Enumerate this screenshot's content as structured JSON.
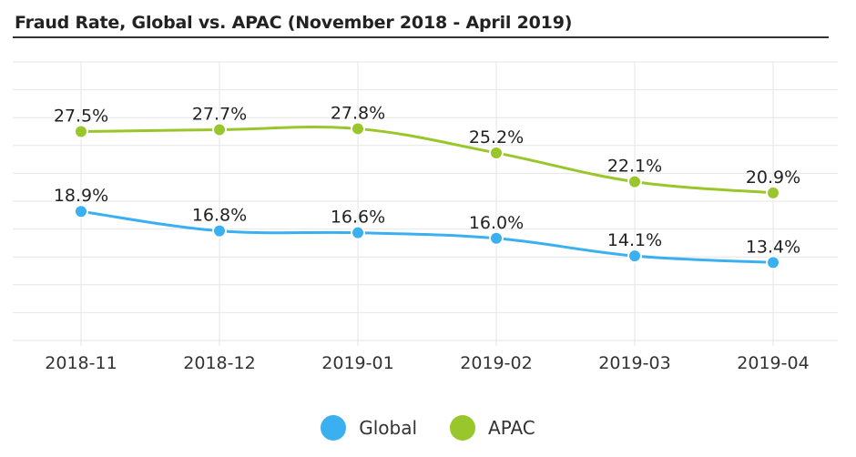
{
  "title": "Fraud Rate, Global vs. APAC (November 2018 - April 2019)",
  "colors": {
    "global": "#3bb0f0",
    "apac": "#99c72b",
    "grid": "#e6e6e6",
    "text": "#333333"
  },
  "chart_data": {
    "type": "line",
    "title": "Fraud Rate, Global vs. APAC (November 2018 - April 2019)",
    "categories": [
      "2018-11",
      "2018-12",
      "2019-01",
      "2019-02",
      "2019-03",
      "2019-04"
    ],
    "ylim": [
      5,
      35
    ],
    "y_unit": "%",
    "grid": true,
    "legend": "bottom",
    "series": [
      {
        "name": "Global",
        "color": "#3bb0f0",
        "values": [
          18.9,
          16.8,
          16.6,
          16.0,
          14.1,
          13.4
        ],
        "labels": [
          "18.9%",
          "16.8%",
          "16.6%",
          "16.0%",
          "14.1%",
          "13.4%"
        ]
      },
      {
        "name": "APAC",
        "color": "#99c72b",
        "values": [
          27.5,
          27.7,
          27.8,
          25.2,
          22.1,
          20.9
        ],
        "labels": [
          "27.5%",
          "27.7%",
          "27.8%",
          "25.2%",
          "22.1%",
          "20.9%"
        ]
      }
    ]
  }
}
